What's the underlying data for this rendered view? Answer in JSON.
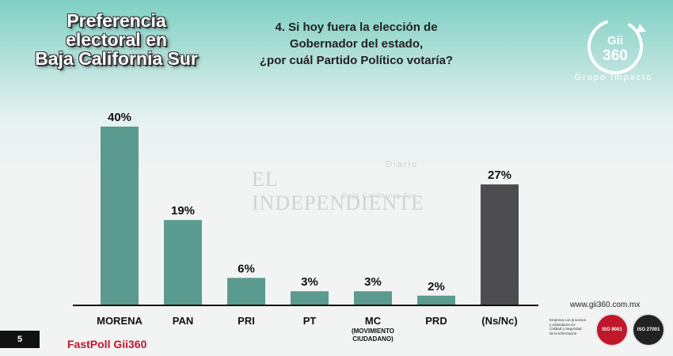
{
  "header": {
    "title_lines": [
      "Preferencia",
      "electoral en",
      "Baja California Sur"
    ],
    "question_lines": [
      "4. Si hoy fuera la elección de",
      "Gobernador del estado,",
      "¿por cuál Partido Político votaría?"
    ]
  },
  "logo": {
    "text_top": "Gii",
    "text_bottom": "360",
    "subtitle": "Grupo Impacto"
  },
  "watermark": {
    "diario": "Diario",
    "main": "EL INDEPENDIENTE",
    "sub": "Baja California Sur"
  },
  "chart_data": {
    "type": "bar",
    "categories": [
      "MORENA",
      "PAN",
      "PRI",
      "PT",
      "MC",
      "PRD",
      "(Ns/Nc)"
    ],
    "category_sublabels": [
      "",
      "",
      "",
      "",
      "(MOVIMIENTO CIUDADANO)",
      "",
      ""
    ],
    "values": [
      40,
      19,
      6,
      3,
      3,
      2,
      27
    ],
    "value_labels": [
      "40%",
      "19%",
      "6%",
      "3%",
      "3%",
      "2%",
      "27%"
    ],
    "colors": [
      "#5b9b8f",
      "#5b9b8f",
      "#5b9b8f",
      "#5b9b8f",
      "#5b9b8f",
      "#5b9b8f",
      "#4d4d4f"
    ],
    "unit": "%",
    "ylim": [
      0,
      40
    ],
    "grid": false,
    "legend": "none",
    "xlabel": "",
    "ylabel": ""
  },
  "footer": {
    "page_number": "5",
    "fastpoll": "FastPoll Gii360",
    "website": "www.gii360.com.mx",
    "cert_text_lines": [
      "Empresa con procesos",
      "y estándares en:",
      "Calidad y Seguridad",
      "de la información"
    ],
    "seal1": "ISO 9001",
    "seal2": "ISO 27001"
  }
}
